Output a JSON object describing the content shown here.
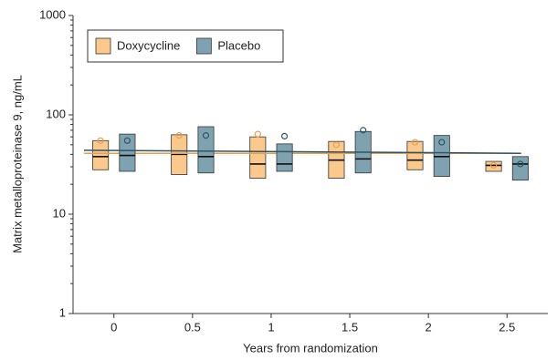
{
  "chart_data": {
    "type": "box",
    "xlabel": "Years from randomization",
    "ylabel": "Matrix metalloproteinase 9, ng/mL",
    "xlim": [
      -0.26,
      2.76
    ],
    "xticks": [
      0,
      0.5,
      1,
      1.5,
      2,
      2.5
    ],
    "ylim": [
      1,
      1000
    ],
    "yticks": [
      1,
      10,
      100,
      1000
    ],
    "log_y": true,
    "legend": "upper left",
    "series": [
      {
        "name": "Doxycycline",
        "color": "#fbc98c",
        "edge": "#e8a050",
        "x": [
          0,
          0.5,
          1,
          1.5,
          2,
          2.5
        ],
        "q1": [
          28,
          25,
          23,
          23,
          28,
          27
        ],
        "median": [
          38,
          40,
          32,
          35,
          35,
          31
        ],
        "q3": [
          55,
          63,
          60,
          54,
          54,
          34
        ],
        "mean": [
          55,
          62,
          64,
          50,
          53,
          31
        ],
        "trend": {
          "x": [
            -0.19,
            2.59
          ],
          "values": [
            41,
            41
          ]
        }
      },
      {
        "name": "Placebo",
        "color": "#7fa2b0",
        "edge": "#2f5563",
        "x": [
          0,
          0.5,
          1,
          1.5,
          2,
          2.5
        ],
        "q1": [
          27,
          26,
          27,
          26,
          24,
          22
        ],
        "median": [
          39,
          38,
          32,
          36,
          38,
          32
        ],
        "q3": [
          64,
          76,
          51,
          68,
          62,
          38
        ],
        "mean": [
          55,
          62,
          61,
          70,
          53,
          32
        ],
        "trend": {
          "x": [
            -0.19,
            2.59
          ],
          "values": [
            44,
            41
          ]
        }
      }
    ]
  }
}
